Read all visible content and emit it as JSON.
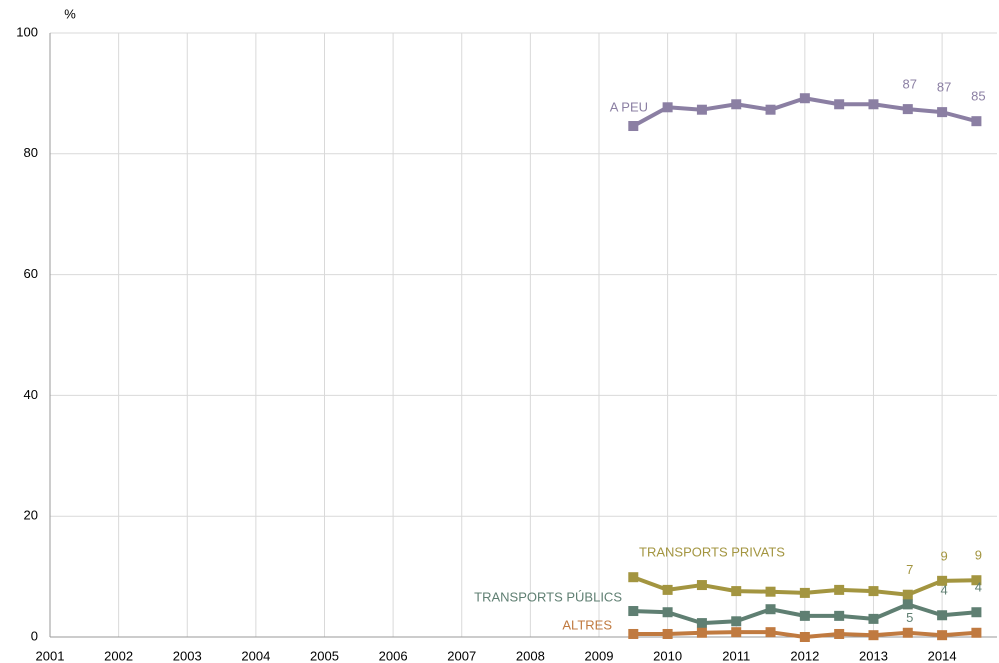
{
  "chart_data": {
    "type": "line",
    "y_label": "%",
    "x": [
      2009.5,
      2010,
      2010.5,
      2011,
      2011.5,
      2012,
      2012.5,
      2013,
      2013.5,
      2014,
      2014.5
    ],
    "xlim": [
      2001,
      2014.8
    ],
    "xticks": [
      2001,
      2002,
      2003,
      2004,
      2005,
      2006,
      2007,
      2008,
      2009,
      2010,
      2011,
      2012,
      2013,
      2014
    ],
    "ylim": [
      0,
      100
    ],
    "yticks": [
      0,
      20,
      40,
      60,
      80,
      100
    ],
    "grid": true,
    "series": [
      {
        "name": "A PEU",
        "color": "#8b7fa3",
        "values": [
          84.6,
          87.7,
          87.3,
          88.2,
          87.3,
          89.2,
          88.2,
          88.2,
          87.4,
          86.9,
          85.4
        ],
        "value_labels": [
          null,
          null,
          null,
          null,
          null,
          null,
          null,
          null,
          "87",
          "87",
          "85"
        ]
      },
      {
        "name": "TRANSPORTS PRIVATS",
        "color": "#a39540",
        "values": [
          9.9,
          7.8,
          8.6,
          7.6,
          7.5,
          7.3,
          7.8,
          7.6,
          7.0,
          9.3,
          9.4
        ],
        "value_labels": [
          null,
          null,
          null,
          null,
          null,
          null,
          null,
          null,
          "7",
          "9",
          "9"
        ]
      },
      {
        "name": "TRANSPORTS PÚBLICS",
        "color": "#5f7f72",
        "values": [
          4.3,
          4.1,
          2.3,
          2.6,
          4.6,
          3.5,
          3.5,
          3.0,
          5.4,
          3.6,
          4.1
        ],
        "value_labels": [
          null,
          null,
          null,
          null,
          null,
          null,
          null,
          null,
          "5",
          "4",
          "4"
        ]
      },
      {
        "name": "ALTRES",
        "color": "#c07a40",
        "values": [
          0.5,
          0.5,
          0.7,
          0.8,
          0.8,
          0.0,
          0.5,
          0.3,
          0.7,
          0.3,
          0.7
        ]
      }
    ]
  }
}
